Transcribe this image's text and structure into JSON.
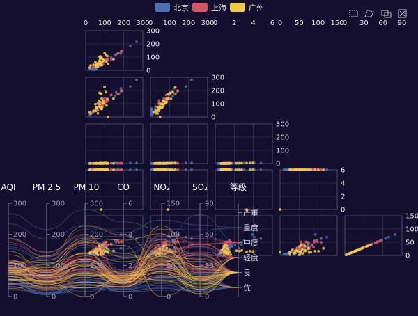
{
  "chart_data": {
    "type": "scatter",
    "legend": {
      "position": "top-center",
      "items": [
        {
          "name": "北京",
          "color": "#4e6fae"
        },
        {
          "name": "上海",
          "color": "#d55662"
        },
        {
          "name": "广州",
          "color": "#f2c94c"
        }
      ]
    },
    "toolbox": [
      {
        "name": "rect-select-icon"
      },
      {
        "name": "polygon-select-icon"
      },
      {
        "name": "keep-selection-icon"
      },
      {
        "name": "clear-selection-icon"
      }
    ],
    "matrix": {
      "columns": [
        {
          "dim": "AQI",
          "ticks": [
            "0",
            "100",
            "200",
            "300"
          ]
        },
        {
          "dim": "PM 2.5",
          "ticks": [
            "0",
            "100",
            "200",
            "300"
          ]
        },
        {
          "dim": "PM 10",
          "ticks": [
            "0",
            "2",
            "4",
            "6"
          ]
        },
        {
          "dim": "CO",
          "ticks": [
            "0",
            "50",
            "100",
            "150"
          ]
        },
        {
          "dim": "NO2",
          "ticks": [
            "0",
            "30",
            "60",
            "90"
          ]
        }
      ],
      "rows": [
        {
          "ticks": [
            "0",
            "100",
            "200",
            "300"
          ]
        },
        {
          "ticks": [
            "0",
            "100",
            "200",
            "300"
          ]
        },
        {
          "ticks": [
            "0",
            "100",
            "200",
            "300"
          ]
        },
        {
          "ticks": [
            "0",
            "2",
            "4",
            "6"
          ]
        },
        {
          "ticks": [
            "0",
            "50",
            "100",
            "150"
          ]
        }
      ]
    },
    "parallel": {
      "axes": [
        {
          "name": "AQI",
          "ticks": [
            "0",
            "100",
            "200",
            "300"
          ],
          "max": 300
        },
        {
          "name": "PM 2.5",
          "ticks": [
            "0",
            "100",
            "200",
            "300"
          ],
          "max": 300
        },
        {
          "name": "PM 10",
          "ticks": [
            "0",
            "100",
            "200",
            "300"
          ],
          "max": 300
        },
        {
          "name": "CO",
          "ticks": [
            "0",
            "2",
            "4",
            "6"
          ],
          "max": 6
        },
        {
          "name": "NO2",
          "ticks": [
            "0",
            "50",
            "100",
            "150"
          ],
          "max": 150
        },
        {
          "name": "SO2",
          "ticks": [
            "0",
            "30",
            "60",
            "90"
          ],
          "max": 90
        },
        {
          "name": "等级",
          "categories": [
            "优",
            "良",
            "轻度",
            "中度",
            "重度",
            "严重"
          ]
        }
      ]
    },
    "series": [
      {
        "name": "北京",
        "color": "#4e6fae",
        "values": [
          [
            55,
            9,
            56,
            0.46,
            18,
            6,
            "良"
          ],
          [
            25,
            11,
            21,
            0.65,
            34,
            9,
            "优"
          ],
          [
            56,
            7,
            63,
            0.3,
            14,
            5,
            "良"
          ],
          [
            33,
            7,
            29,
            0.33,
            16,
            6,
            "优"
          ],
          [
            42,
            24,
            44,
            0.76,
            40,
            16,
            "优"
          ],
          [
            82,
            58,
            90,
            1.77,
            68,
            33,
            "良"
          ],
          [
            74,
            49,
            77,
            1.46,
            48,
            27,
            "良"
          ],
          [
            78,
            55,
            80,
            1.29,
            59,
            29,
            "良"
          ],
          [
            267,
            216,
            280,
            4.8,
            108,
            64,
            "重度"
          ],
          [
            185,
            127,
            216,
            2.52,
            61,
            27,
            "中度"
          ],
          [
            39,
            19,
            38,
            0.57,
            31,
            15,
            "优"
          ],
          [
            41,
            11,
            40,
            0.43,
            21,
            7,
            "优"
          ],
          [
            64,
            38,
            74,
            1.04,
            46,
            22,
            "良"
          ],
          [
            108,
            79,
            120,
            1.7,
            75,
            41,
            "轻度"
          ],
          [
            108,
            63,
            116,
            1.48,
            44,
            26,
            "轻度"
          ],
          [
            33,
            6,
            29,
            0.34,
            13,
            5,
            "优"
          ],
          [
            94,
            66,
            110,
            1.54,
            62,
            31,
            "良"
          ],
          [
            186,
            142,
            192,
            3.88,
            93,
            79,
            "中度"
          ],
          [
            57,
            31,
            54,
            0.96,
            32,
            14,
            "良"
          ],
          [
            22,
            8,
            17,
            0.48,
            23,
            10,
            "优"
          ],
          [
            39,
            15,
            36,
            0.61,
            29,
            13,
            "优"
          ],
          [
            94,
            69,
            114,
            2.08,
            73,
            39,
            "良"
          ],
          [
            99,
            73,
            110,
            2.43,
            76,
            48,
            "良"
          ],
          [
            31,
            12,
            30,
            0.5,
            32,
            16,
            "优"
          ],
          [
            42,
            27,
            43,
            1,
            53,
            22,
            "优"
          ],
          [
            154,
            117,
            157,
            3.05,
            92,
            58,
            "中度"
          ],
          [
            234,
            185,
            230,
            4.09,
            123,
            69,
            "重度"
          ],
          [
            160,
            120,
            186,
            2.77,
            91,
            50,
            "中度"
          ],
          [
            134,
            96,
            165,
            2.76,
            83,
            41,
            "轻度"
          ],
          [
            52,
            24,
            60,
            1.03,
            50,
            21,
            "良"
          ],
          [
            46,
            5,
            49,
            0.28,
            10,
            6,
            "优"
          ]
        ]
      },
      {
        "name": "上海",
        "color": "#d55662",
        "values": [
          [
            91,
            45,
            125,
            0.82,
            34,
            23,
            "良"
          ],
          [
            65,
            27,
            78,
            0.86,
            45,
            29,
            "良"
          ],
          [
            83,
            60,
            84,
            1.09,
            73,
            27,
            "良"
          ],
          [
            109,
            81,
            121,
            1.28,
            68,
            51,
            "轻度"
          ],
          [
            106,
            77,
            114,
            1.07,
            55,
            51,
            "轻度"
          ],
          [
            109,
            81,
            121,
            1.28,
            68,
            51,
            "轻度"
          ],
          [
            106,
            77,
            114,
            1.07,
            55,
            51,
            "轻度"
          ],
          [
            89,
            65,
            78,
            0.86,
            51,
            26,
            "良"
          ],
          [
            53,
            33,
            47,
            0.64,
            50,
            17,
            "良"
          ],
          [
            80,
            55,
            80,
            1.01,
            75,
            24,
            "良"
          ],
          [
            117,
            81,
            124,
            1.03,
            45,
            24,
            "轻度"
          ],
          [
            99,
            71,
            142,
            1.1,
            62,
            42,
            "良"
          ],
          [
            95,
            69,
            130,
            1.28,
            74,
            50,
            "良"
          ],
          [
            116,
            87,
            131,
            1.47,
            84,
            40,
            "轻度"
          ],
          [
            108,
            80,
            121,
            1.3,
            85,
            37,
            "轻度"
          ],
          [
            134,
            83,
            167,
            1.16,
            57,
            43,
            "轻度"
          ],
          [
            79,
            43,
            107,
            1.05,
            59,
            37,
            "良"
          ],
          [
            71,
            46,
            89,
            0.86,
            64,
            25,
            "良"
          ],
          [
            97,
            71,
            113,
            1.17,
            88,
            31,
            "良"
          ],
          [
            84,
            57,
            91,
            0.85,
            55,
            31,
            "良"
          ],
          [
            87,
            63,
            101,
            0.9,
            56,
            41,
            "良"
          ],
          [
            104,
            77,
            119,
            1.09,
            73,
            48,
            "轻度"
          ],
          [
            87,
            62,
            100,
            1,
            72,
            28,
            "良"
          ],
          [
            168,
            128,
            172,
            1.49,
            97,
            56,
            "中度"
          ],
          [
            65,
            45,
            51,
            0.74,
            39,
            17,
            "良"
          ],
          [
            39,
            24,
            38,
            0.61,
            47,
            17,
            "优"
          ],
          [
            39,
            24,
            39,
            0.59,
            50,
            19,
            "优"
          ],
          [
            93,
            68,
            96,
            1.05,
            79,
            29,
            "良"
          ],
          [
            188,
            143,
            197,
            1.66,
            99,
            51,
            "中度"
          ],
          [
            174,
            131,
            174,
            1.55,
            108,
            50,
            "中度"
          ],
          [
            187,
            143,
            201,
            1.39,
            89,
            53,
            "中度"
          ]
        ]
      },
      {
        "name": "广州",
        "color": "#f2c94c",
        "values": [
          [
            26,
            37,
            27,
            1.163,
            27,
            13,
            "优"
          ],
          [
            85,
            62,
            71,
            1.195,
            60,
            8,
            "良"
          ],
          [
            78,
            38,
            74,
            1.363,
            37,
            7,
            "良"
          ],
          [
            21,
            21,
            36,
            0.634,
            40,
            9,
            "优"
          ],
          [
            41,
            42,
            46,
            0.915,
            81,
            13,
            "优"
          ],
          [
            56,
            52,
            69,
            1.067,
            92,
            16,
            "良"
          ],
          [
            64,
            30,
            28,
            0.924,
            51,
            2,
            "良"
          ],
          [
            55,
            48,
            74,
            1.236,
            75,
            26,
            "良"
          ],
          [
            76,
            85,
            113,
            1.237,
            114,
            27,
            "良"
          ],
          [
            91,
            81,
            104,
            1.041,
            56,
            40,
            "良"
          ],
          [
            84,
            39,
            60,
            0.964,
            25,
            11,
            "良"
          ],
          [
            64,
            51,
            101,
            0.862,
            58,
            23,
            "良"
          ],
          [
            70,
            69,
            120,
            1.198,
            65,
            36,
            "良"
          ],
          [
            77,
            105,
            178,
            2.549,
            64,
            16,
            "良"
          ],
          [
            109,
            68,
            87,
            0.996,
            74,
            29,
            "轻度"
          ],
          [
            73,
            68,
            97,
            0.905,
            51,
            34,
            "良"
          ],
          [
            54,
            27,
            47,
            0.592,
            53,
            12,
            "良"
          ],
          [
            51,
            61,
            97,
            0.811,
            65,
            19,
            "良"
          ],
          [
            91,
            71,
            121,
            1.374,
            43,
            18,
            "良"
          ],
          [
            73,
            102,
            182,
            2.787,
            44,
            19,
            "良"
          ],
          [
            73,
            50,
            76,
            0.717,
            31,
            20,
            "良"
          ],
          [
            84,
            94,
            140,
            2.238,
            68,
            18,
            "良"
          ],
          [
            93,
            77,
            104,
            1.165,
            53,
            7,
            "良"
          ],
          [
            99,
            130,
            227,
            3.97,
            55,
            15,
            "良"
          ],
          [
            146,
            84,
            139,
            1.094,
            40,
            17,
            "轻度"
          ],
          [
            113,
            108,
            137,
            1.481,
            48,
            15,
            "轻度"
          ],
          [
            81,
            48,
            62,
            1.619,
            26,
            3,
            "良"
          ],
          [
            56,
            48,
            68,
            1.336,
            37,
            9,
            "良"
          ],
          [
            82,
            92,
            174,
            3.29,
            0,
            13,
            "良"
          ],
          [
            106,
            116,
            188,
            3.628,
            101,
            16,
            "轻度"
          ],
          [
            118,
            50,
            0,
            1.383,
            76,
            11,
            "轻度"
          ]
        ]
      }
    ]
  }
}
